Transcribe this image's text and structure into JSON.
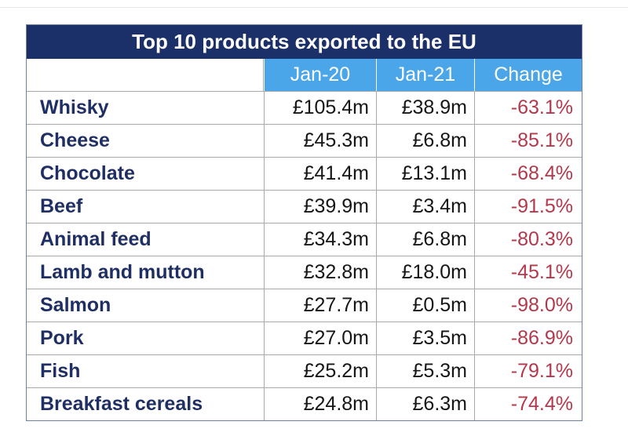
{
  "chart_data": {
    "type": "table",
    "title": "Top 10 products exported to the EU",
    "columns": [
      "",
      "Jan-20",
      "Jan-21",
      "Change"
    ],
    "rows": [
      {
        "product": "Whisky",
        "jan20": "£105.4m",
        "jan21": "£38.9m",
        "change": "-63.1%"
      },
      {
        "product": "Cheese",
        "jan20": "£45.3m",
        "jan21": "£6.8m",
        "change": "-85.1%"
      },
      {
        "product": "Chocolate",
        "jan20": "£41.4m",
        "jan21": "£13.1m",
        "change": "-68.4%"
      },
      {
        "product": "Beef",
        "jan20": "£39.9m",
        "jan21": "£3.4m",
        "change": "-91.5%"
      },
      {
        "product": "Animal feed",
        "jan20": "£34.3m",
        "jan21": "£6.8m",
        "change": "-80.3%"
      },
      {
        "product": "Lamb and mutton",
        "jan20": "£32.8m",
        "jan21": "£18.0m",
        "change": "-45.1%"
      },
      {
        "product": "Salmon",
        "jan20": "£27.7m",
        "jan21": "£0.5m",
        "change": "-98.0%"
      },
      {
        "product": "Pork",
        "jan20": "£27.0m",
        "jan21": "£3.5m",
        "change": "-86.9%"
      },
      {
        "product": "Fish",
        "jan20": "£25.2m",
        "jan21": "£5.3m",
        "change": "-79.1%"
      },
      {
        "product": "Breakfast cereals",
        "jan20": "£24.8m",
        "jan21": "£6.3m",
        "change": "-74.4%"
      }
    ],
    "colors": {
      "title_bg": "#1b2f68",
      "header_bg": "#4aa6e8",
      "product_text": "#1f2f63",
      "change_text": "#b4384b"
    }
  }
}
